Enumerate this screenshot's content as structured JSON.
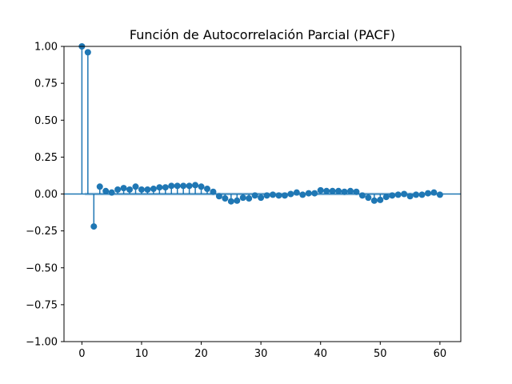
{
  "chart_data": {
    "type": "stem",
    "title": "Función de Autocorrelación Parcial (PACF)",
    "xlabel": "",
    "ylabel": "",
    "xlim": [
      -3,
      63.5
    ],
    "ylim": [
      -1.0,
      1.0
    ],
    "x_ticks": [
      0,
      10,
      20,
      30,
      40,
      50,
      60
    ],
    "y_ticks": [
      -1.0,
      -0.75,
      -0.5,
      -0.25,
      0.0,
      0.25,
      0.5,
      0.75,
      1.0
    ],
    "y_tick_labels": [
      "−1.00",
      "−0.75",
      "−0.50",
      "−0.25",
      "0.00",
      "0.25",
      "0.50",
      "0.75",
      "1.00"
    ],
    "x_tick_labels": [
      "0",
      "10",
      "20",
      "30",
      "40",
      "50",
      "60"
    ],
    "confidence_band": 0.01,
    "color": "#1f77b4",
    "lags": [
      0,
      1,
      2,
      3,
      4,
      5,
      6,
      7,
      8,
      9,
      10,
      11,
      12,
      13,
      14,
      15,
      16,
      17,
      18,
      19,
      20,
      21,
      22,
      23,
      24,
      25,
      26,
      27,
      28,
      29,
      30,
      31,
      32,
      33,
      34,
      35,
      36,
      37,
      38,
      39,
      40,
      41,
      42,
      43,
      44,
      45,
      46,
      47,
      48,
      49,
      50,
      51,
      52,
      53,
      54,
      55,
      56,
      57,
      58,
      59,
      60
    ],
    "values": [
      1.0,
      0.96,
      -0.22,
      0.05,
      0.02,
      0.01,
      0.03,
      0.04,
      0.03,
      0.05,
      0.03,
      0.03,
      0.035,
      0.045,
      0.045,
      0.055,
      0.055,
      0.055,
      0.055,
      0.06,
      0.05,
      0.035,
      0.015,
      -0.015,
      -0.03,
      -0.05,
      -0.045,
      -0.025,
      -0.03,
      -0.01,
      -0.025,
      -0.01,
      -0.005,
      -0.01,
      -0.01,
      0.0,
      0.01,
      -0.005,
      0.005,
      0.005,
      0.025,
      0.02,
      0.02,
      0.02,
      0.015,
      0.02,
      0.015,
      -0.01,
      -0.025,
      -0.045,
      -0.04,
      -0.02,
      -0.01,
      -0.005,
      0.0,
      -0.015,
      -0.005,
      -0.005,
      0.005,
      0.01,
      -0.005
    ]
  }
}
